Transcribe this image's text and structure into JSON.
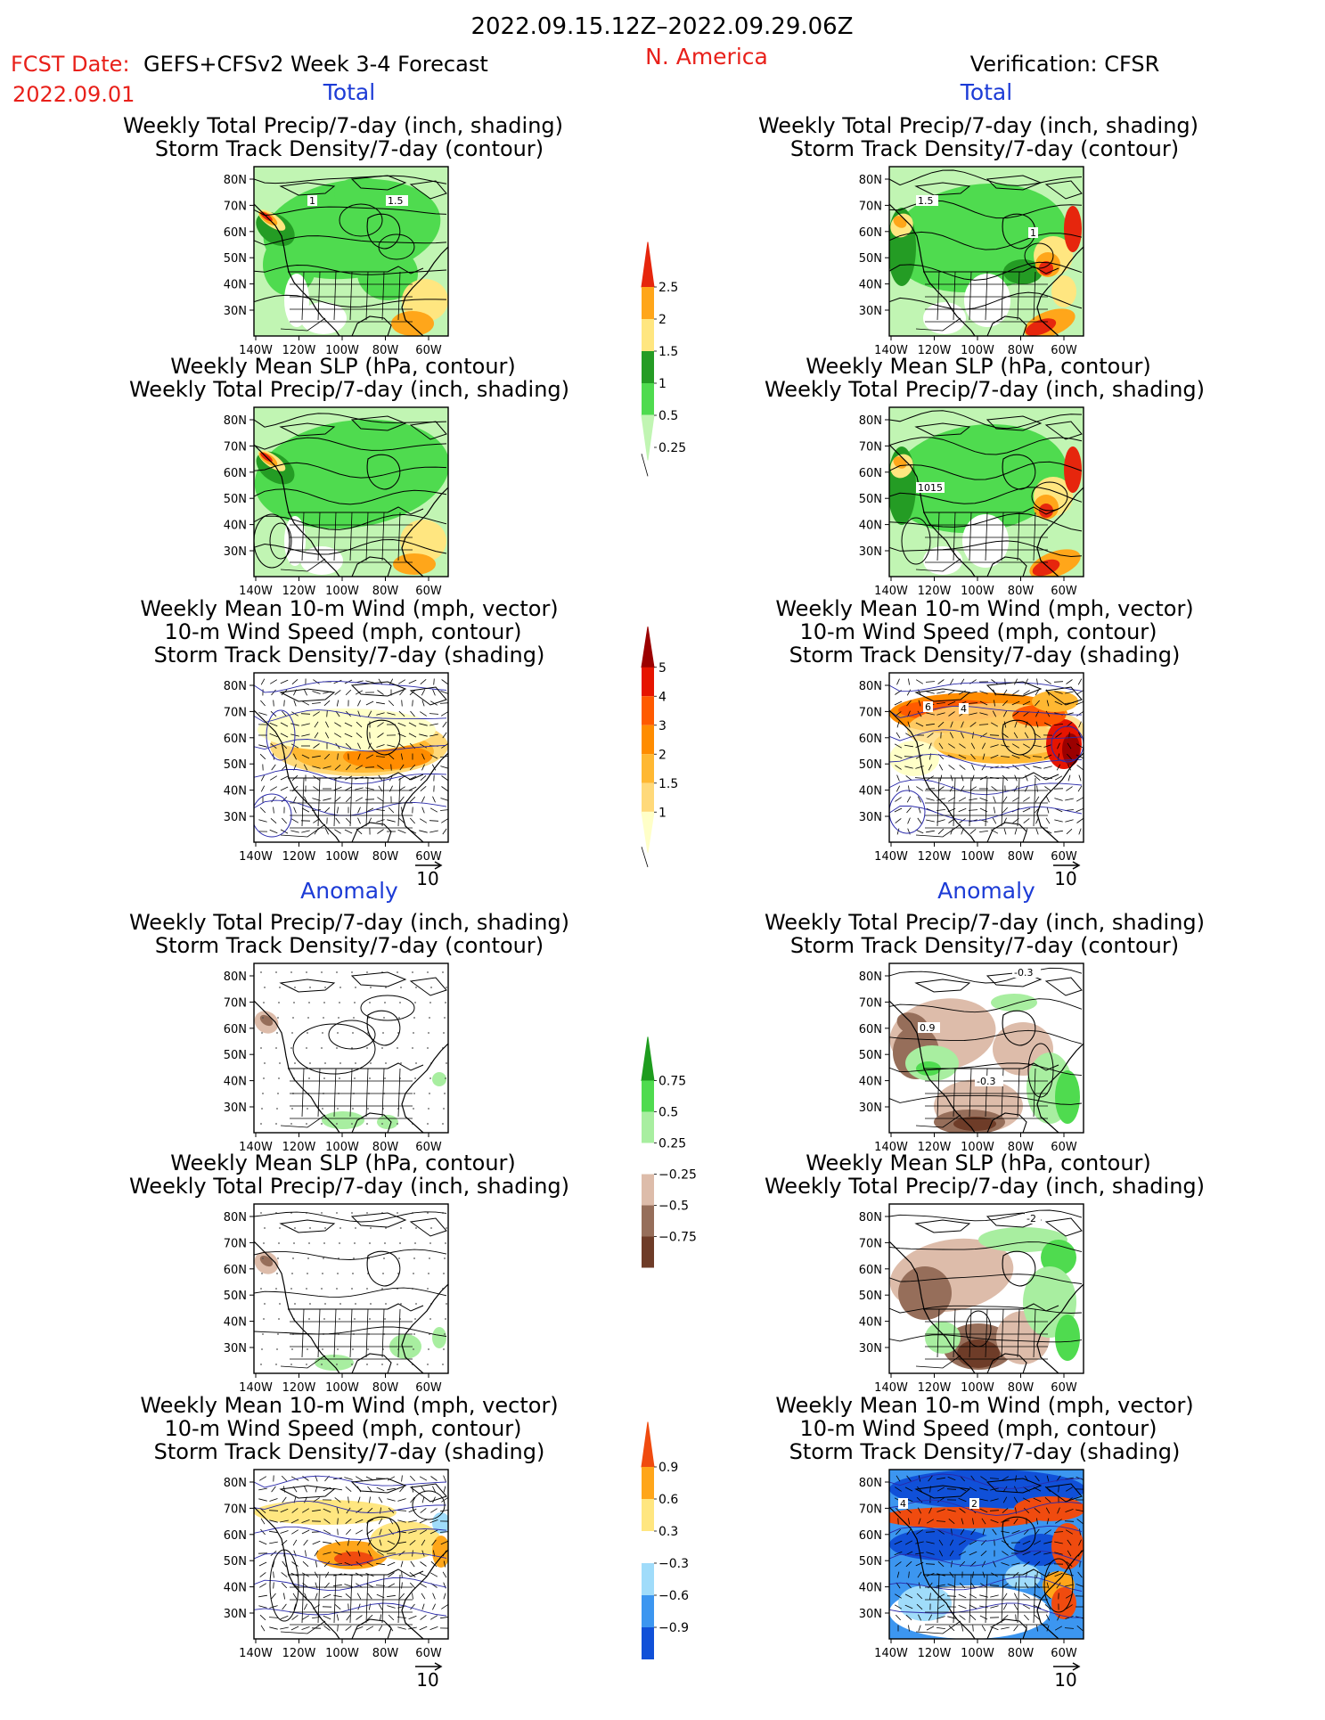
{
  "header": {
    "period": "2022.09.15.12Z–2022.09.29.06Z",
    "region": "N. America",
    "fcst_label": "FCST Date:",
    "model": "GEFS+CFSv2 Week 3-4 Forecast",
    "fcst_date": "2022.09.01",
    "verification": "Verification: CFSR"
  },
  "sections": {
    "total": "Total",
    "anomaly": "Anomaly"
  },
  "axes": {
    "lat_labels": [
      "80N",
      "70N",
      "60N",
      "50N",
      "40N",
      "30N"
    ],
    "lon_labels": [
      "140W",
      "120W",
      "100W",
      "80W",
      "60W"
    ]
  },
  "panel_titles": {
    "precip_storm": [
      "Weekly Total Precip/7-day (inch, shading)",
      "Storm Track Density/7-day (contour)"
    ],
    "slp_precip": [
      "Weekly Mean SLP (hPa, contour)",
      "Weekly Total Precip/7-day (inch, shading)"
    ],
    "wind_storm": [
      "Weekly Mean 10-m Wind (mph, vector)",
      "10-m Wind Speed (mph, contour)",
      "Storm Track Density/7-day (shading)"
    ]
  },
  "vector_reference": "10",
  "colorbars": {
    "total_precip": {
      "colors": [
        "#c1f5b3",
        "#4fdb4f",
        "#249c24",
        "#ffe680",
        "#ffa61a",
        "#e6260d"
      ],
      "labels": [
        "0.25",
        "0.5",
        "1",
        "1.5",
        "2",
        "2.5"
      ]
    },
    "total_storm": {
      "colors": [
        "#ffffc8",
        "#ffd97a",
        "#ffb832",
        "#ff8c00",
        "#ff5a00",
        "#e61400",
        "#9b0000"
      ],
      "labels": [
        "1",
        "1.5",
        "2",
        "3",
        "4",
        "5"
      ]
    },
    "anom_precip": {
      "colors": [
        "#6e3c28",
        "#966e5a",
        "#ddbcaa",
        "#ffffff",
        "#a8eea0",
        "#4fdb4f",
        "#1e9c1e"
      ],
      "labels": [
        "−0.75",
        "−0.5",
        "−0.25",
        "0.25",
        "0.5",
        "0.75"
      ]
    },
    "anom_storm": {
      "colors": [
        "#1050d8",
        "#3c96f0",
        "#a0dcfa",
        "#ffffff",
        "#ffe680",
        "#ffa61a",
        "#f04b0f"
      ],
      "labels": [
        "−0.9",
        "−0.6",
        "−0.3",
        "0.3",
        "0.6",
        "0.9"
      ]
    }
  },
  "contour_labels": {
    "p1": [
      "1",
      "1.5"
    ],
    "p4": [
      "1.5",
      "1"
    ],
    "p5": [
      "1015"
    ],
    "p6": [
      "6",
      "4"
    ],
    "p10": [
      "-0.3",
      "0.9",
      "-0.3"
    ],
    "p11": [
      "-2"
    ],
    "p12": [
      "4",
      "2"
    ]
  }
}
